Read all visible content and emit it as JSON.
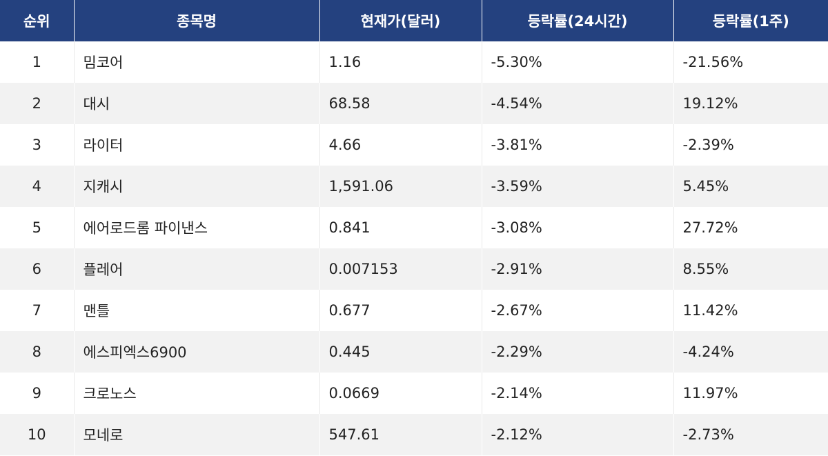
{
  "table": {
    "headers": {
      "rank": "순위",
      "name": "종목명",
      "price": "현재가(달러)",
      "change_24h": "등락률(24시간)",
      "change_1w": "등락률(1주)"
    },
    "rows": [
      {
        "rank": "1",
        "name": "밈코어",
        "price": "1.16",
        "change_24h": "-5.30%",
        "change_1w": "-21.56%"
      },
      {
        "rank": "2",
        "name": "대시",
        "price": "68.58",
        "change_24h": "-4.54%",
        "change_1w": "19.12%"
      },
      {
        "rank": "3",
        "name": "라이터",
        "price": "4.66",
        "change_24h": "-3.81%",
        "change_1w": "-2.39%"
      },
      {
        "rank": "4",
        "name": "지캐시",
        "price": "1,591.06",
        "change_24h": "-3.59%",
        "change_1w": "5.45%"
      },
      {
        "rank": "5",
        "name": "에어로드롬 파이낸스",
        "price": "0.841",
        "change_24h": "-3.08%",
        "change_1w": "27.72%"
      },
      {
        "rank": "6",
        "name": "플레어",
        "price": "0.007153",
        "change_24h": "-2.91%",
        "change_1w": "8.55%"
      },
      {
        "rank": "7",
        "name": "맨틀",
        "price": "0.677",
        "change_24h": "-2.67%",
        "change_1w": "11.42%"
      },
      {
        "rank": "8",
        "name": "에스피엑스6900",
        "price": "0.445",
        "change_24h": "-2.29%",
        "change_1w": "-4.24%"
      },
      {
        "rank": "9",
        "name": "크로노스",
        "price": "0.0669",
        "change_24h": "-2.14%",
        "change_1w": "11.97%"
      },
      {
        "rank": "10",
        "name": "모네로",
        "price": "547.61",
        "change_24h": "-2.12%",
        "change_1w": "-2.73%"
      }
    ]
  }
}
